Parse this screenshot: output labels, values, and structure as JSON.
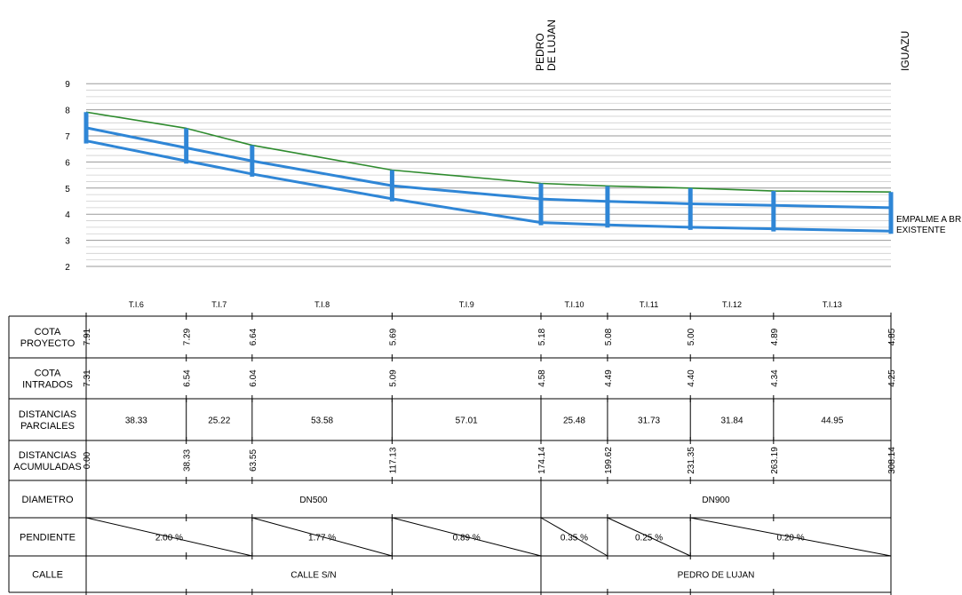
{
  "colors": {
    "terrain": "#2e8b2e",
    "pipe": "#2f86d6",
    "grid": "#9a9a9a",
    "ink": "#000000"
  },
  "y_axis": {
    "ticks": [
      "2",
      "3",
      "4",
      "5",
      "6",
      "7",
      "8",
      "9"
    ],
    "min": 2,
    "max": 9
  },
  "top_labels": [
    "PEDRO\nDE LUJAN",
    "IGUAZU"
  ],
  "end_note": [
    "EMPALME A BR",
    "EXISTENTE"
  ],
  "chart_data": {
    "type": "line",
    "x": [
      0.0,
      38.33,
      63.55,
      117.13,
      174.14,
      199.62,
      231.35,
      263.19,
      308.14
    ],
    "series": [
      {
        "values": [
          7.91,
          7.29,
          6.64,
          5.69,
          5.18,
          5.08,
          5.0,
          4.89,
          4.85
        ]
      },
      {
        "values": [
          7.31,
          6.54,
          6.04,
          5.09,
          4.58,
          4.49,
          4.4,
          4.34,
          4.25
        ]
      },
      {
        "values": [
          6.81,
          6.04,
          5.54,
          4.59,
          3.68,
          3.59,
          3.5,
          3.44,
          3.35
        ]
      }
    ],
    "ylim": [
      2,
      9
    ]
  },
  "section_labels": [
    "T.I.6",
    "T.I.7",
    "T.I.8",
    "T.I.9",
    "T.I.10",
    "T.I.11",
    "T.I.12",
    "T.I.13"
  ],
  "rows": {
    "cota_proyecto": {
      "label": [
        "COTA",
        "PROYECTO"
      ],
      "values": [
        "7.91",
        "7.29",
        "6.64",
        "5.69",
        "5.18",
        "5.08",
        "5.00",
        "4.89",
        "4.85"
      ]
    },
    "cota_intrados": {
      "label": [
        "COTA",
        "INTRADOS"
      ],
      "values": [
        "7.31",
        "6.54",
        "6.04",
        "5.09",
        "4.58",
        "4.49",
        "4.40",
        "4.34",
        "4.25"
      ]
    },
    "distancias_parciales": {
      "label": [
        "DISTANCIAS",
        "PARCIALES"
      ],
      "values": [
        "38.33",
        "25.22",
        "53.58",
        "57.01",
        "25.48",
        "31.73",
        "31.84",
        "44.95"
      ]
    },
    "distancias_acumuladas": {
      "label": [
        "DISTANCIAS",
        "ACUMULADAS"
      ],
      "values": [
        "0.00",
        "38.33",
        "63.55",
        "117.13",
        "174.14",
        "199.62",
        "231.35",
        "263.19",
        "308.14"
      ]
    },
    "diametro": {
      "label": [
        "DIAMETRO"
      ],
      "values": [
        "DN500",
        "DN900"
      ]
    },
    "pendiente": {
      "label": [
        "PENDIENTE"
      ],
      "values": [
        "2.00 %",
        "1.77 %",
        "0.89 %",
        "0.35 %",
        "0.25 %",
        "0.20 %"
      ]
    },
    "calle": {
      "label": [
        "CALLE"
      ],
      "values": [
        "CALLE S/N",
        "PEDRO DE LUJAN"
      ]
    }
  }
}
